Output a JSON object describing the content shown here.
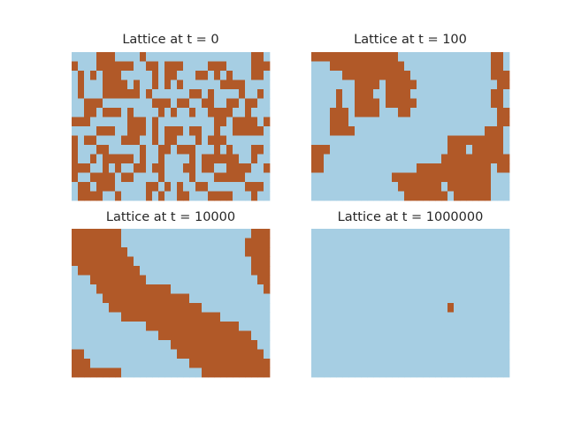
{
  "chart_data": [
    {
      "type": "heatmap",
      "title": "Lattice at t = 0",
      "rows": 16,
      "cols": 32,
      "colors": {
        "0": "#a6cee3",
        "1": "#b15928"
      },
      "grid": [
        "00001110000100000000000000000110",
        "10001111110011011100001110000111",
        "01010111000001011000110101000110",
        "01000111101001010100000011110000",
        "01000111111010000001101000010010",
        "00111000000001110110011001101100",
        "00110111010000101001001111001000",
        "11100000011101000000000110111101",
        "00001110011101011101100100111110",
        "10110000111001011000101110000000",
        "10001100000100110111000101000110",
        "10010111110100100001011111100100",
        "11100101001101100011011001111001",
        "10011110110000100001000111110000",
        "01101110000011010100110000001110",
        "01111001000010100110001111000100"
      ]
    },
    {
      "type": "heatmap",
      "title": "Lattice at t = 100",
      "rows": 16,
      "cols": 32,
      "colors": {
        "0": "#a6cee3",
        "1": "#b15928"
      },
      "grid": [
        "11111111111111000000000000000110",
        "00011111111111100000000000000110",
        "00000111111111110000000000000111",
        "00000001111011111000000000000011",
        "00001001110011110000000000000110",
        "00001001111011111000000000000110",
        "00011101111000110000000000000011",
        "00011100000000000000000000000011",
        "00011110000000000000000000001110",
        "00000000000000000000001111111110",
        "11100000000000000000001110111110",
        "11000000000000000000011111111111",
        "11000000000000000111111111111011",
        "00000000000001111111111111111000",
        "00000000000000111111101111111000",
        "00000000000000011111110111111000"
      ]
    },
    {
      "type": "heatmap",
      "title": "Lattice at t = 10000",
      "rows": 16,
      "cols": 32,
      "colors": {
        "0": "#a6cee3",
        "1": "#b15928"
      },
      "grid": [
        "11111111000000000000000000000111",
        "11111111000000000000000000001111",
        "11111111100000000000000000001111",
        "11111111110000000000000000000111",
        "01111111111000000000000000000111",
        "00011111111100000000000000000011",
        "00001111111111110000000000000001",
        "00000111111111111110000000000000",
        "00000011111111111111100000000000",
        "00000000111111111111111100000000",
        "00000000000011111111111111100000",
        "00000000000000111111111111111000",
        "00000000000000001111111111111100",
        "11000000000000000111111111111110",
        "11100000000000000001111111111111",
        "11111111000000000000011111111111"
      ]
    },
    {
      "type": "heatmap",
      "title": "Lattice at t = 1000000",
      "rows": 16,
      "cols": 32,
      "colors": {
        "0": "#a6cee3",
        "1": "#b15928"
      },
      "grid": [
        "00000000000000000000000000000000",
        "00000000000000000000000000000000",
        "00000000000000000000000000000000",
        "00000000000000000000000000000000",
        "00000000000000000000000000000000",
        "00000000000000000000000000000000",
        "00000000000000000000000000000000",
        "00000000000000000000000000000000",
        "00000000000000000000001000000000",
        "00000000000000000000000000000000",
        "00000000000000000000000000000000",
        "00000000000000000000000000000000",
        "00000000000000000000000000000000",
        "00000000000000000000000000000000",
        "00000000000000000000000000000000",
        "00000000000000000000000000000000"
      ]
    }
  ]
}
